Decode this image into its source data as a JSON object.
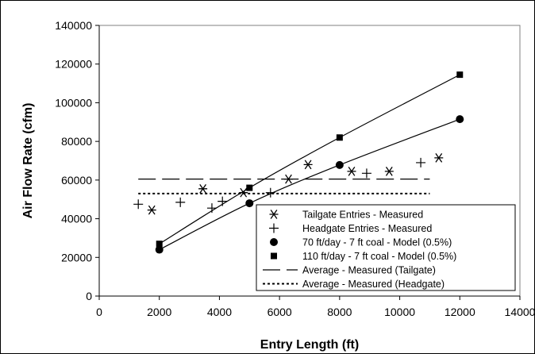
{
  "chart_data": {
    "type": "scatter",
    "title": "",
    "xlabel": "Entry Length (ft)",
    "ylabel": "Air Flow Rate (cfm)",
    "xlim": [
      0,
      14000
    ],
    "ylim": [
      0,
      140000
    ],
    "xticks": [
      "0",
      "2000",
      "4000",
      "6000",
      "8000",
      "10000",
      "12000",
      "14000"
    ],
    "yticks": [
      "0",
      "20000",
      "40000",
      "60000",
      "80000",
      "100000",
      "120000",
      "140000"
    ],
    "grid": false,
    "legend_position": "bottom-right",
    "series": [
      {
        "name": "Tailgate Entries - Measured",
        "kind": "points",
        "marker": "asterisk",
        "points": [
          [
            1750,
            44500
          ],
          [
            3450,
            55500
          ],
          [
            4800,
            53500
          ],
          [
            6300,
            60500
          ],
          [
            6950,
            68000
          ],
          [
            8400,
            64500
          ],
          [
            9650,
            64500
          ],
          [
            11300,
            71500
          ]
        ]
      },
      {
        "name": "Headgate Entries - Measured",
        "kind": "points",
        "marker": "plus",
        "points": [
          [
            1300,
            47500
          ],
          [
            2700,
            48500
          ],
          [
            3750,
            45500
          ],
          [
            4100,
            49000
          ],
          [
            5700,
            53500
          ],
          [
            8900,
            63500
          ],
          [
            10700,
            69000
          ]
        ]
      },
      {
        "name": "70 ft/day - 7 ft coal - Model (0.5%)",
        "kind": "line-markers",
        "marker": "circle",
        "points": [
          [
            2000,
            24000
          ],
          [
            5000,
            48000
          ],
          [
            8000,
            67800
          ],
          [
            12000,
            91500
          ]
        ]
      },
      {
        "name": "110 ft/day - 7 ft coal - Model (0.5%)",
        "kind": "line-markers",
        "marker": "square",
        "points": [
          [
            2000,
            27000
          ],
          [
            5000,
            56000
          ],
          [
            8000,
            82000
          ],
          [
            12000,
            114500
          ]
        ]
      },
      {
        "name": "Average - Measured (Tailgate)",
        "kind": "hline",
        "dash": "long",
        "y": 60500,
        "x_range": [
          1300,
          11000
        ]
      },
      {
        "name": "Average - Measured (Headgate)",
        "kind": "hline",
        "dash": "dotted",
        "y": 53000,
        "x_range": [
          1300,
          11000
        ]
      }
    ]
  }
}
